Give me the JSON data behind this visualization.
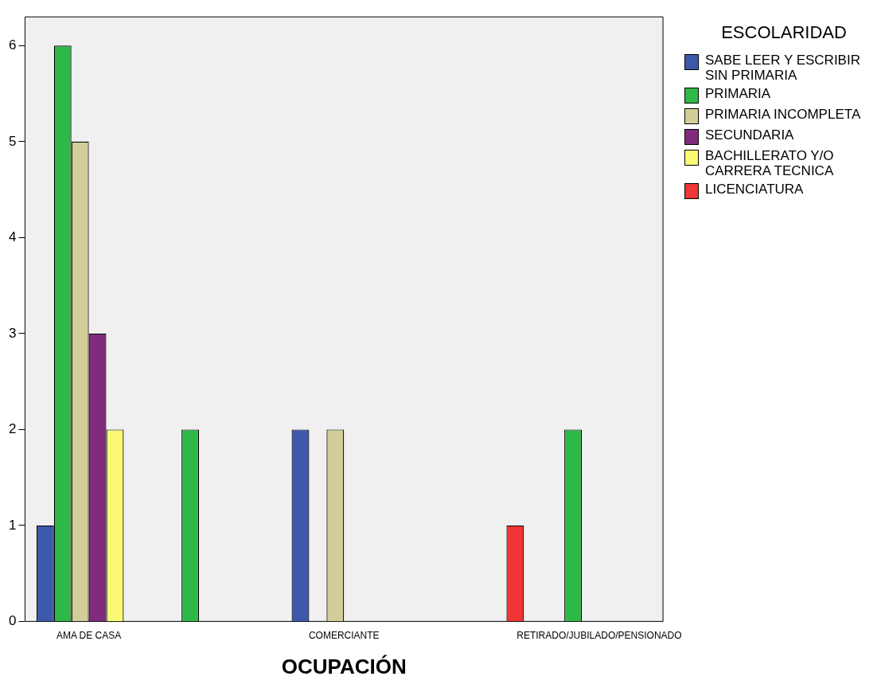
{
  "chart_data": {
    "type": "bar",
    "xlabel": "OCUPACIÓN",
    "legend_title": "ESCOLARIDAD",
    "legend": "right",
    "categories": [
      "AMA DE CASA",
      null,
      "COMERCIANTE",
      null,
      "RETIRADO/JUBILADO/PENSIONADO"
    ],
    "ylim": [
      0,
      6.3
    ],
    "yticks": [
      0,
      1,
      2,
      3,
      4,
      5,
      6
    ],
    "grid": false,
    "series": [
      {
        "name": "SABE LEER Y ESCRIBIR SIN PRIMARIA",
        "color": "#3e58ac",
        "values": [
          1,
          null,
          2,
          null,
          null
        ]
      },
      {
        "name": "PRIMARIA",
        "color": "#2eb848",
        "values": [
          6,
          2,
          null,
          null,
          2
        ]
      },
      {
        "name": "PRIMARIA INCOMPLETA",
        "color": "#d3ce97",
        "values": [
          5,
          null,
          2,
          null,
          null
        ]
      },
      {
        "name": "SECUNDARIA",
        "color": "#812b7d",
        "values": [
          3,
          null,
          null,
          null,
          null
        ]
      },
      {
        "name": "BACHILLERATO Y/O CARRERA TECNICA",
        "color": "#fbf873",
        "values": [
          2,
          null,
          null,
          null,
          null
        ]
      },
      {
        "name": "LICENCIATURA",
        "color": "#ef3535",
        "values": [
          null,
          null,
          null,
          1,
          null
        ]
      }
    ]
  }
}
